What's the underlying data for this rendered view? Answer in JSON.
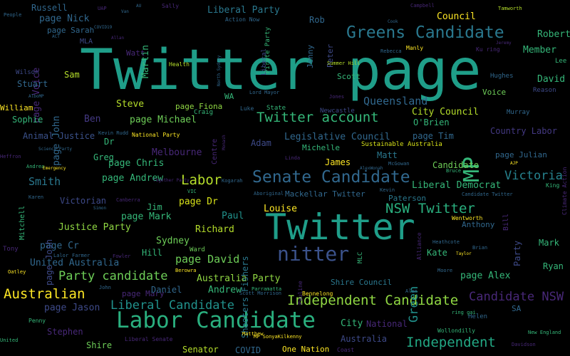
{
  "background": "#000000",
  "words": [
    {
      "text": "Twitter page",
      "color": "#1f9e89"
    },
    {
      "text": "Twitter",
      "color": "#1f9e89"
    },
    {
      "text": "Labor Candidate",
      "color": "#2ab07f"
    },
    {
      "text": "Greens Candidate",
      "color": "#2a788e"
    },
    {
      "text": "Senate Candidate",
      "color": "#31688e"
    },
    {
      "text": "nitter",
      "color": "#3b528b"
    },
    {
      "text": "Twitter account",
      "color": "#35b779"
    },
    {
      "text": "NSW Twitter",
      "color": "#2ab07f"
    },
    {
      "text": "Independent Candidate",
      "color": "#90d743"
    },
    {
      "text": "Independent",
      "color": "#22a884"
    },
    {
      "text": "Australian",
      "color": "#fde725"
    },
    {
      "text": "Labor",
      "color": "#b5de2b"
    },
    {
      "text": "MP",
      "color": "#35b779"
    },
    {
      "text": "Liberal Candidate",
      "color": "#21918c"
    },
    {
      "text": "Party candidate",
      "color": "#6ece58"
    },
    {
      "text": "Candidate NSW",
      "color": "#482878"
    },
    {
      "text": "Council",
      "color": "#fde725"
    },
    {
      "text": "Liberal Party",
      "color": "#2a788e"
    },
    {
      "text": "City Council",
      "color": "#b5de2b"
    },
    {
      "text": "Legislative Council",
      "color": "#31688e"
    },
    {
      "text": "Queensland",
      "color": "#31688e"
    },
    {
      "text": "Victoria",
      "color": "#26828e"
    },
    {
      "text": "Australia Party",
      "color": "#90d743"
    },
    {
      "text": "Shire Council",
      "color": "#2a788e"
    },
    {
      "text": "Country Labor",
      "color": "#443983"
    },
    {
      "text": "Liberal Democrat",
      "color": "#35b779"
    },
    {
      "text": "Sydney",
      "color": "#6ece58"
    },
    {
      "text": "Melbourne",
      "color": "#482878"
    },
    {
      "text": "page David",
      "color": "#6ece58"
    },
    {
      "text": "page Andrew",
      "color": "#35b779"
    },
    {
      "text": "page Mark",
      "color": "#35b779"
    },
    {
      "text": "page Dr",
      "color": "#d8e219"
    },
    {
      "text": "page Michael",
      "color": "#6ece58"
    },
    {
      "text": "page Chris",
      "color": "#35b779"
    },
    {
      "text": "page Tim",
      "color": "#31688e"
    },
    {
      "text": "page Alex",
      "color": "#35b779"
    },
    {
      "text": "page Jason",
      "color": "#3e4a89"
    },
    {
      "text": "page Mary",
      "color": "#482878"
    },
    {
      "text": "page Cr",
      "color": "#31688e"
    },
    {
      "text": "page Nick",
      "color": "#31688e"
    },
    {
      "text": "page Sarah",
      "color": "#31688e"
    },
    {
      "text": "page Fiona",
      "color": "#90d743"
    },
    {
      "text": "page Julian",
      "color": "#31688e"
    },
    {
      "text": "page John",
      "color": "#31688e"
    },
    {
      "text": "page Voice",
      "color": "#482878"
    },
    {
      "text": "page Josh",
      "color": "#3e4a89"
    },
    {
      "text": "Justice Party",
      "color": "#90d743"
    },
    {
      "text": "United Australia",
      "color": "#31688e"
    },
    {
      "text": "Animal Justice",
      "color": "#3b528b"
    },
    {
      "text": "Mackellar Twitter",
      "color": "#31688e"
    },
    {
      "text": "Sustainable Australia",
      "color": "#d8e219"
    },
    {
      "text": "One Nation",
      "color": "#fde725"
    },
    {
      "text": "National Party",
      "color": "#fde725"
    },
    {
      "text": "Shooters Fishers",
      "color": "#2a788e"
    },
    {
      "text": "Martin",
      "color": "#35b779"
    },
    {
      "text": "Russell",
      "color": "#31688e"
    },
    {
      "text": "Robert",
      "color": "#35b779"
    },
    {
      "text": "Member",
      "color": "#35b779"
    },
    {
      "text": "David",
      "color": "#35b779"
    },
    {
      "text": "Voice",
      "color": "#6ece58"
    },
    {
      "text": "Steve",
      "color": "#b5de2b"
    },
    {
      "text": "Ben",
      "color": "#443983"
    },
    {
      "text": "Sophie",
      "color": "#35b779"
    },
    {
      "text": "William",
      "color": "#fde725"
    },
    {
      "text": "Stuart",
      "color": "#31688e"
    },
    {
      "text": "Sam",
      "color": "#b5de2b"
    },
    {
      "text": "Watt",
      "color": "#482878"
    },
    {
      "text": "Rob",
      "color": "#31688e"
    },
    {
      "text": "Peter",
      "color": "#3e4a89"
    },
    {
      "text": "Jenny",
      "color": "#31688e"
    },
    {
      "text": "Scott",
      "color": "#35b779"
    },
    {
      "text": "WA",
      "color": "#35b779"
    },
    {
      "text": "Adam",
      "color": "#3e4a89"
    },
    {
      "text": "James",
      "color": "#fde725"
    },
    {
      "text": "Matt",
      "color": "#2a788e"
    },
    {
      "text": "Michelle",
      "color": "#35b779"
    },
    {
      "text": "O'Brien",
      "color": "#35b779"
    },
    {
      "text": "Candidate",
      "color": "#6ece58"
    },
    {
      "text": "Greg",
      "color": "#35b779"
    },
    {
      "text": "Dr",
      "color": "#35b779"
    },
    {
      "text": "Smith",
      "color": "#2a788e"
    },
    {
      "text": "Victorian",
      "color": "#3e4a89"
    },
    {
      "text": "Jim",
      "color": "#35b779"
    },
    {
      "text": "Richard",
      "color": "#b5de2b"
    },
    {
      "text": "Paul",
      "color": "#21918c"
    },
    {
      "text": "Louise",
      "color": "#fde725"
    },
    {
      "text": "Paterson",
      "color": "#2a788e"
    },
    {
      "text": "Anthony",
      "color": "#31688e"
    },
    {
      "text": "Party",
      "color": "#3e4a89"
    },
    {
      "text": "Mark",
      "color": "#35b779"
    },
    {
      "text": "Ryan",
      "color": "#35b779"
    },
    {
      "text": "Kate",
      "color": "#35b779"
    },
    {
      "text": "Green",
      "color": "#21918c"
    },
    {
      "text": "Hill",
      "color": "#35b779"
    },
    {
      "text": "Ward",
      "color": "#6ece58"
    },
    {
      "text": "Daniel",
      "color": "#31688e"
    },
    {
      "text": "Andrew",
      "color": "#35b779"
    },
    {
      "text": "Stephen",
      "color": "#482878"
    },
    {
      "text": "Shire",
      "color": "#6ece58"
    },
    {
      "text": "Senator",
      "color": "#b5de2b"
    },
    {
      "text": "COVID",
      "color": "#31688e"
    },
    {
      "text": "City",
      "color": "#35b779"
    },
    {
      "text": "National",
      "color": "#482878"
    },
    {
      "text": "Australia",
      "color": "#3e4a89"
    },
    {
      "text": "Tony",
      "color": "#482878"
    },
    {
      "text": "SA",
      "color": "#31688e"
    },
    {
      "text": "Mitchell",
      "color": "#35b779"
    },
    {
      "text": "Helen",
      "color": "#31688e"
    },
    {
      "text": "Centre",
      "color": "#482878"
    },
    {
      "text": "Bill",
      "color": "#482878"
    },
    {
      "text": "Lee",
      "color": "#35b779"
    },
    {
      "text": "Reason",
      "color": "#3e4a89"
    },
    {
      "text": "Hughes",
      "color": "#31688e"
    },
    {
      "text": "Murray",
      "color": "#31688e"
    },
    {
      "text": "Newcastle",
      "color": "#3e4a89"
    },
    {
      "text": "State",
      "color": "#35b779"
    },
    {
      "text": "Luke",
      "color": "#31688e"
    },
    {
      "text": "Craig",
      "color": "#35b779"
    },
    {
      "text": "Health",
      "color": "#b5de2b"
    },
    {
      "text": "Lord Mayor",
      "color": "#31688e"
    },
    {
      "text": "Action Now",
      "color": "#31688e"
    },
    {
      "text": "Pirate Party",
      "color": "#35b779"
    },
    {
      "text": "Liberal",
      "color": "#3e4a89"
    },
    {
      "text": "Summer Hill",
      "color": "#b5de2b"
    },
    {
      "text": "Rebecca",
      "color": "#31688e"
    },
    {
      "text": "Manly",
      "color": "#fde725"
    },
    {
      "text": "Tamworth",
      "color": "#b5de2b"
    },
    {
      "text": "Campbell",
      "color": "#482878"
    },
    {
      "text": "Jeremy",
      "color": "#482878"
    },
    {
      "text": "Ku ring",
      "color": "#482878"
    },
    {
      "text": "Jones",
      "color": "#482878"
    },
    {
      "text": "Cook",
      "color": "#31688e"
    },
    {
      "text": "UAP",
      "color": "#482878"
    },
    {
      "text": "Van",
      "color": "#31688e"
    },
    {
      "text": "Sally",
      "color": "#482878"
    },
    {
      "text": "People",
      "color": "#31688e"
    },
    {
      "text": "MLA",
      "color": "#3e4a89"
    },
    {
      "text": "ACT",
      "color": "#31688e"
    },
    {
      "text": "Allan",
      "color": "#482878"
    },
    {
      "text": "COVID19",
      "color": "#31688e"
    },
    {
      "text": "Wilson",
      "color": "#3e4a89"
    },
    {
      "text": "AlboMP",
      "color": "#31688e"
    },
    {
      "text": "Kevin Rudd",
      "color": "#31688e"
    },
    {
      "text": "Science Party",
      "color": "#31688e"
    },
    {
      "text": "Heffron",
      "color": "#482878"
    },
    {
      "text": "Andrea",
      "color": "#35b779"
    },
    {
      "text": "Emergency",
      "color": "#fde725"
    },
    {
      "text": "Karen",
      "color": "#31688e"
    },
    {
      "text": "Together Party",
      "color": "#482878"
    },
    {
      "text": "Kogarah",
      "color": "#31688e"
    },
    {
      "text": "Canberra",
      "color": "#482878"
    },
    {
      "text": "Simon",
      "color": "#31688e"
    },
    {
      "text": "VIC",
      "color": "#35b779"
    },
    {
      "text": "Aboriginal",
      "color": "#31688e"
    },
    {
      "text": "Linda",
      "color": "#482878"
    },
    {
      "text": "AlexWonah",
      "color": "#31688e"
    },
    {
      "text": "McGowan",
      "color": "#31688e"
    },
    {
      "text": "Kevin",
      "color": "#31688e"
    },
    {
      "text": "Bruce",
      "color": "#35b779"
    },
    {
      "text": "AJP",
      "color": "#fde725"
    },
    {
      "text": "King",
      "color": "#35b779"
    },
    {
      "text": "Climate Action",
      "color": "#482878"
    },
    {
      "text": "Candidate Twitter",
      "color": "#31688e"
    },
    {
      "text": "Wentworth",
      "color": "#fde725"
    },
    {
      "text": "Alliance",
      "color": "#482878"
    },
    {
      "text": "Heathcote",
      "color": "#31688e"
    },
    {
      "text": "Taylor",
      "color": "#fde725"
    },
    {
      "text": "Brian",
      "color": "#31688e"
    },
    {
      "text": "Moore",
      "color": "#31688e"
    },
    {
      "text": "ring gai",
      "color": "#35b779"
    },
    {
      "text": "Wollondilly",
      "color": "#35b779"
    },
    {
      "text": "New England",
      "color": "#35b779"
    },
    {
      "text": "Davidson",
      "color": "#482878"
    },
    {
      "text": "Alan",
      "color": "#31688e"
    },
    {
      "text": "Bennelong",
      "color": "#fde725"
    },
    {
      "text": "Pauline",
      "color": "#482878"
    },
    {
      "text": "Parramatta",
      "color": "#35b779"
    },
    {
      "text": "Scott Morrison",
      "color": "#31688e"
    },
    {
      "text": "Berowra",
      "color": "#fde725"
    },
    {
      "text": "MLC",
      "color": "#35b779"
    },
    {
      "text": "Coast",
      "color": "#482878"
    },
    {
      "text": "MP SonyaKilkenny",
      "color": "#fde725"
    },
    {
      "text": "Matthew",
      "color": "#fde725"
    },
    {
      "text": "Liberal Senate",
      "color": "#482878"
    },
    {
      "text": "Penny",
      "color": "#35b779"
    },
    {
      "text": "Oatley",
      "color": "#fde725"
    },
    {
      "text": "United",
      "color": "#35b779"
    },
    {
      "text": "Fowler",
      "color": "#482878"
    },
    {
      "text": "Farmer",
      "color": "#31688e"
    },
    {
      "text": "John",
      "color": "#31688e"
    },
    {
      "text": "Lalor",
      "color": "#31688e"
    },
    {
      "text": "North Sydney",
      "color": "#31688e"
    },
    {
      "text": "AU",
      "color": "#31688e"
    },
    {
      "text": "Monash",
      "color": "#482878"
    }
  ]
}
